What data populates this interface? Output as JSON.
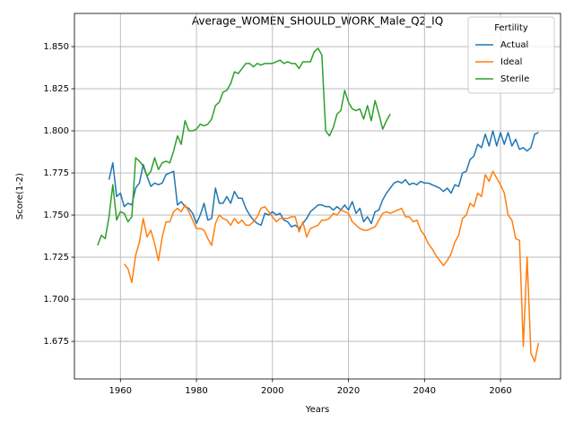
{
  "chart_data": {
    "type": "line",
    "title": "Average_WOMEN_SHOULD_WORK_Male_Q2_IQ",
    "x_label": "Years",
    "y_label": "Score(1-2)",
    "legend_title": "Fertility",
    "legend": "upper right",
    "grid": true,
    "xlim": [
      1947.9,
      2075.8
    ],
    "ylim": [
      1.6527,
      1.8697
    ],
    "xticks": [
      1960,
      1980,
      2000,
      2020,
      2040,
      2060
    ],
    "yticks": [
      1.675,
      {
        "value": 1.7,
        "label": "1.700"
      },
      1.725,
      {
        "value": 1.75,
        "label": "1.750"
      },
      1.775,
      {
        "value": 1.8,
        "label": "1.800"
      },
      1.825,
      {
        "value": 1.85,
        "label": "1.850"
      }
    ],
    "x": [
      1954,
      1955,
      1956,
      1957,
      1958,
      1959,
      1960,
      1961,
      1962,
      1963,
      1964,
      1965,
      1966,
      1967,
      1968,
      1969,
      1970,
      1971,
      1972,
      1973,
      1974,
      1975,
      1976,
      1977,
      1978,
      1979,
      1980,
      1981,
      1982,
      1983,
      1984,
      1985,
      1986,
      1987,
      1988,
      1989,
      1990,
      1991,
      1992,
      1993,
      1994,
      1995,
      1996,
      1997,
      1998,
      1999,
      2000,
      2001,
      2002,
      2003,
      2004,
      2005,
      2006,
      2007,
      2008,
      2009,
      2010,
      2011,
      2012,
      2013,
      2014,
      2015,
      2016,
      2017,
      2018,
      2019,
      2020,
      2021,
      2022,
      2023,
      2024,
      2025,
      2026,
      2027,
      2028,
      2029,
      2030,
      2031,
      2032,
      2033,
      2034,
      2035,
      2036,
      2037,
      2038,
      2039,
      2040,
      2041,
      2042,
      2043,
      2044,
      2045,
      2046,
      2047,
      2048,
      2049,
      2050,
      2051,
      2052,
      2053,
      2054,
      2055,
      2056,
      2057,
      2058,
      2059,
      2060,
      2061,
      2062,
      2063,
      2064,
      2065,
      2066,
      2067,
      2068,
      2069,
      2070
    ],
    "series": [
      {
        "name": "Actual",
        "color": "#1f77b4",
        "values": [
          null,
          null,
          null,
          1.771,
          1.781,
          1.761,
          1.763,
          1.755,
          1.757,
          1.756,
          1.766,
          1.769,
          1.78,
          1.773,
          1.767,
          1.769,
          1.768,
          1.769,
          1.774,
          1.775,
          1.776,
          1.756,
          1.758,
          1.755,
          1.754,
          1.751,
          1.745,
          1.75,
          1.757,
          1.747,
          1.748,
          1.766,
          1.757,
          1.757,
          1.761,
          1.757,
          1.764,
          1.76,
          1.76,
          1.754,
          1.75,
          1.747,
          1.745,
          1.744,
          1.751,
          1.75,
          1.752,
          1.75,
          1.751,
          1.747,
          1.746,
          1.743,
          1.744,
          1.742,
          1.745,
          1.748,
          1.752,
          1.754,
          1.756,
          1.756,
          1.755,
          1.755,
          1.753,
          1.755,
          1.753,
          1.756,
          1.753,
          1.758,
          1.751,
          1.754,
          1.746,
          1.749,
          1.745,
          1.752,
          1.753,
          1.759,
          1.763,
          1.766,
          1.769,
          1.77,
          1.769,
          1.771,
          1.768,
          1.769,
          1.768,
          1.77,
          1.769,
          1.769,
          1.768,
          1.767,
          1.766,
          1.764,
          1.766,
          1.763,
          1.768,
          1.767,
          1.775,
          1.776,
          1.783,
          1.785,
          1.792,
          1.79,
          1.798,
          1.791,
          1.8,
          1.791,
          1.799,
          1.792,
          1.799,
          1.791,
          1.795,
          1.789,
          1.79,
          1.788,
          1.79,
          1.798,
          1.799
        ]
      },
      {
        "name": "Ideal",
        "color": "#ff7f0e",
        "values": [
          null,
          null,
          null,
          null,
          null,
          null,
          null,
          1.721,
          1.718,
          1.71,
          1.726,
          1.734,
          1.748,
          1.737,
          1.741,
          1.733,
          1.723,
          1.737,
          1.746,
          1.746,
          1.752,
          1.754,
          1.752,
          1.756,
          1.752,
          1.747,
          1.742,
          1.742,
          1.741,
          1.736,
          1.732,
          1.745,
          1.75,
          1.748,
          1.747,
          1.744,
          1.748,
          1.745,
          1.747,
          1.744,
          1.744,
          1.746,
          1.749,
          1.754,
          1.755,
          1.752,
          1.749,
          1.746,
          1.748,
          1.748,
          1.748,
          1.749,
          1.749,
          1.74,
          1.746,
          1.737,
          1.742,
          1.743,
          1.744,
          1.747,
          1.747,
          1.748,
          1.751,
          1.75,
          1.753,
          1.752,
          1.751,
          1.746,
          1.744,
          1.742,
          1.741,
          1.741,
          1.742,
          1.743,
          1.747,
          1.751,
          1.752,
          1.751,
          1.752,
          1.753,
          1.754,
          1.749,
          1.749,
          1.746,
          1.747,
          1.741,
          1.738,
          1.733,
          1.73,
          1.726,
          1.723,
          1.72,
          1.723,
          1.727,
          1.734,
          1.738,
          1.748,
          1.75,
          1.757,
          1.755,
          1.763,
          1.761,
          1.774,
          1.77,
          1.776,
          1.772,
          1.768,
          1.763,
          1.75,
          1.747,
          1.736,
          1.735,
          1.672,
          1.725,
          1.668,
          1.663,
          1.674
        ]
      },
      {
        "name": "Sterile",
        "color": "#2ca02c",
        "values": [
          1.732,
          1.738,
          1.736,
          1.749,
          1.768,
          1.747,
          1.752,
          1.751,
          1.746,
          1.749,
          1.784,
          1.782,
          1.779,
          1.773,
          1.776,
          1.784,
          1.777,
          1.781,
          1.782,
          1.781,
          1.788,
          1.797,
          1.792,
          1.806,
          1.8,
          1.8,
          1.801,
          1.804,
          1.803,
          1.804,
          1.807,
          1.815,
          1.817,
          1.823,
          1.824,
          1.828,
          1.835,
          1.834,
          1.837,
          1.84,
          1.84,
          1.838,
          1.84,
          1.839,
          1.84,
          1.84,
          1.84,
          1.841,
          1.842,
          1.84,
          1.841,
          1.84,
          1.84,
          1.837,
          1.841,
          1.841,
          1.841,
          1.847,
          1.849,
          1.845,
          1.8,
          1.797,
          1.802,
          1.81,
          1.812,
          1.824,
          1.817,
          1.813,
          1.812,
          1.813,
          1.807,
          1.815,
          1.806,
          1.818,
          1.81,
          1.801,
          1.806,
          1.81,
          null,
          null,
          null,
          null,
          null,
          null,
          null,
          null,
          null,
          null,
          null,
          null,
          null,
          null,
          null,
          null,
          null,
          null,
          null,
          null,
          null,
          null,
          null,
          null,
          null,
          null,
          null,
          null,
          null,
          null,
          null,
          null,
          null,
          null,
          null,
          null,
          null,
          null,
          null
        ]
      }
    ]
  }
}
